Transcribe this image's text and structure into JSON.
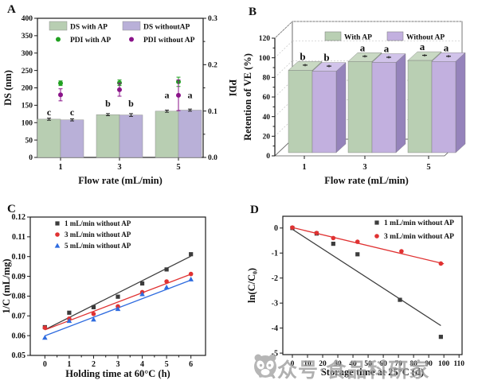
{
  "watermark": {
    "text": "公众号·食品科研家",
    "icon": "wechat-official-account-icon",
    "color": "#9b9b9b"
  },
  "chart_data": [
    {
      "panel_label": "A",
      "type": "bar",
      "xlabel": "Flow rate (mL/min)",
      "ylabel": "DS (nm)",
      "ylabel_right": "PDI",
      "ylim": [
        0,
        400
      ],
      "yticks": [
        "0",
        "50",
        "100",
        "150",
        "200",
        "250",
        "300",
        "350",
        "400"
      ],
      "ylim_right": [
        0,
        0.3
      ],
      "yticks_right": [
        "0.0",
        "0.1",
        "0.2",
        "0.3"
      ],
      "categories": [
        "1",
        "3",
        "5"
      ],
      "bar_series": [
        {
          "name": "DS with AP",
          "color": "#b8ceb2",
          "values": [
            110,
            123,
            133
          ],
          "errors": [
            3,
            3,
            3
          ],
          "letters": [
            "c",
            "b",
            "a"
          ]
        },
        {
          "name": "DS withoutAP",
          "color": "#b9b0d8",
          "values": [
            108,
            122,
            136
          ],
          "errors": [
            3,
            4,
            3
          ],
          "letters": [
            "c",
            "b",
            "a"
          ]
        }
      ],
      "scatter_series": [
        {
          "name": "PDI with AP",
          "color": "#21a121",
          "values": [
            0.16,
            0.161,
            0.163
          ],
          "errors": [
            0.005,
            0.006,
            0.01
          ]
        },
        {
          "name": "PDI without AP",
          "color": "#8a1389",
          "values": [
            0.135,
            0.146,
            0.134
          ],
          "errors": [
            0.013,
            0.014,
            0.033
          ]
        }
      ],
      "legend_position": "top-inside",
      "grid": false
    },
    {
      "panel_label": "B",
      "type": "bar3d",
      "xlabel": "Flow rate (mL/min)",
      "ylabel": "Retention of VE (%)",
      "ylim": [
        0,
        120
      ],
      "yticks": [
        "0",
        "20",
        "40",
        "60",
        "80",
        "100",
        "120"
      ],
      "categories": [
        "1",
        "3",
        "5"
      ],
      "series": [
        {
          "name": "With AP",
          "color": "#b9cfb3",
          "top_color": "#c9d9c3",
          "side_color": "#96ac90",
          "values": [
            84,
            93,
            94
          ],
          "letters": [
            "b",
            "a",
            "a"
          ]
        },
        {
          "name": "Without AP",
          "color": "#c2b0df",
          "top_color": "#d1c3ea",
          "side_color": "#9583bb",
          "values": [
            83,
            92,
            93
          ],
          "letters": [
            "b",
            "a",
            "a"
          ]
        }
      ],
      "legend_position": "top-inside",
      "grid": "dotted-back-walls"
    },
    {
      "panel_label": "C",
      "type": "scatter",
      "xlabel": "Holding time at 60°C (h)",
      "ylabel": "1/C (mL/mg)",
      "xlim": [
        -0.6,
        6.6
      ],
      "xticks": [
        "0",
        "1",
        "2",
        "3",
        "4",
        "5",
        "6"
      ],
      "ylim": [
        0.05,
        0.12
      ],
      "yticks": [
        "0.05",
        "0.06",
        "0.07",
        "0.08",
        "0.09",
        "0.10",
        "0.11",
        "0.12"
      ],
      "series": [
        {
          "name": "1 mL/min without AP",
          "marker": "square",
          "color": "#3c3c3c",
          "x": [
            0,
            1,
            2,
            3,
            4,
            5,
            6
          ],
          "y": [
            0.0643,
            0.0716,
            0.0744,
            0.0797,
            0.0864,
            0.0935,
            0.1012
          ],
          "fit": {
            "x": [
              0,
              6
            ],
            "y": [
              0.063,
              0.1002
            ]
          }
        },
        {
          "name": "3 mL/min without AP",
          "marker": "circle",
          "color": "#e03232",
          "x": [
            0,
            1,
            2,
            3,
            4,
            5,
            6
          ],
          "y": [
            0.064,
            0.0686,
            0.071,
            0.0748,
            0.082,
            0.0874,
            0.0912
          ],
          "fit": {
            "x": [
              0,
              6
            ],
            "y": [
              0.0629,
              0.0911
            ]
          }
        },
        {
          "name": "5 mL/min without AP",
          "marker": "triangle",
          "color": "#2e6bdf",
          "x": [
            0,
            1,
            2,
            3,
            4,
            5,
            6
          ],
          "y": [
            0.059,
            0.0675,
            0.0682,
            0.0735,
            0.081,
            0.0845,
            0.0885
          ],
          "fit": {
            "x": [
              0,
              6
            ],
            "y": [
              0.0599,
              0.0881
            ]
          }
        }
      ],
      "legend_position": "top-left-inside",
      "grid": false
    },
    {
      "panel_label": "D",
      "type": "scatter",
      "xlabel": "Storage time at 25°C (d)",
      "ylabel": "ln(C/C₀)",
      "xlim": [
        -6.3,
        112
      ],
      "xticks": [
        "0",
        "10",
        "20",
        "30",
        "40",
        "50",
        "60",
        "70",
        "80",
        "90",
        "100",
        "110"
      ],
      "ylim": [
        -5.06,
        0.47
      ],
      "yticks": [
        "0",
        "-1",
        "-2",
        "-3",
        "-4",
        "-5"
      ],
      "series": [
        {
          "name": "1 mL/min without AP",
          "marker": "square",
          "color": "#3c3c3c",
          "x": [
            0,
            16,
            27,
            43,
            71,
            98
          ],
          "y": [
            0,
            -0.22,
            -0.63,
            -1.05,
            -2.87,
            -4.35
          ],
          "fit": {
            "x": [
              0,
              98
            ],
            "y": [
              -0.05,
              -3.9
            ]
          }
        },
        {
          "name": "3 mL/min without AP",
          "marker": "circle",
          "color": "#e03232",
          "x": [
            0,
            16,
            27,
            43,
            72,
            98
          ],
          "y": [
            0.02,
            -0.2,
            -0.4,
            -0.55,
            -0.93,
            -1.42
          ],
          "fit": {
            "x": [
              0,
              100
            ],
            "y": [
              0.02,
              -1.43
            ]
          }
        }
      ],
      "legend_position": "top-right-inside",
      "grid": false
    }
  ]
}
